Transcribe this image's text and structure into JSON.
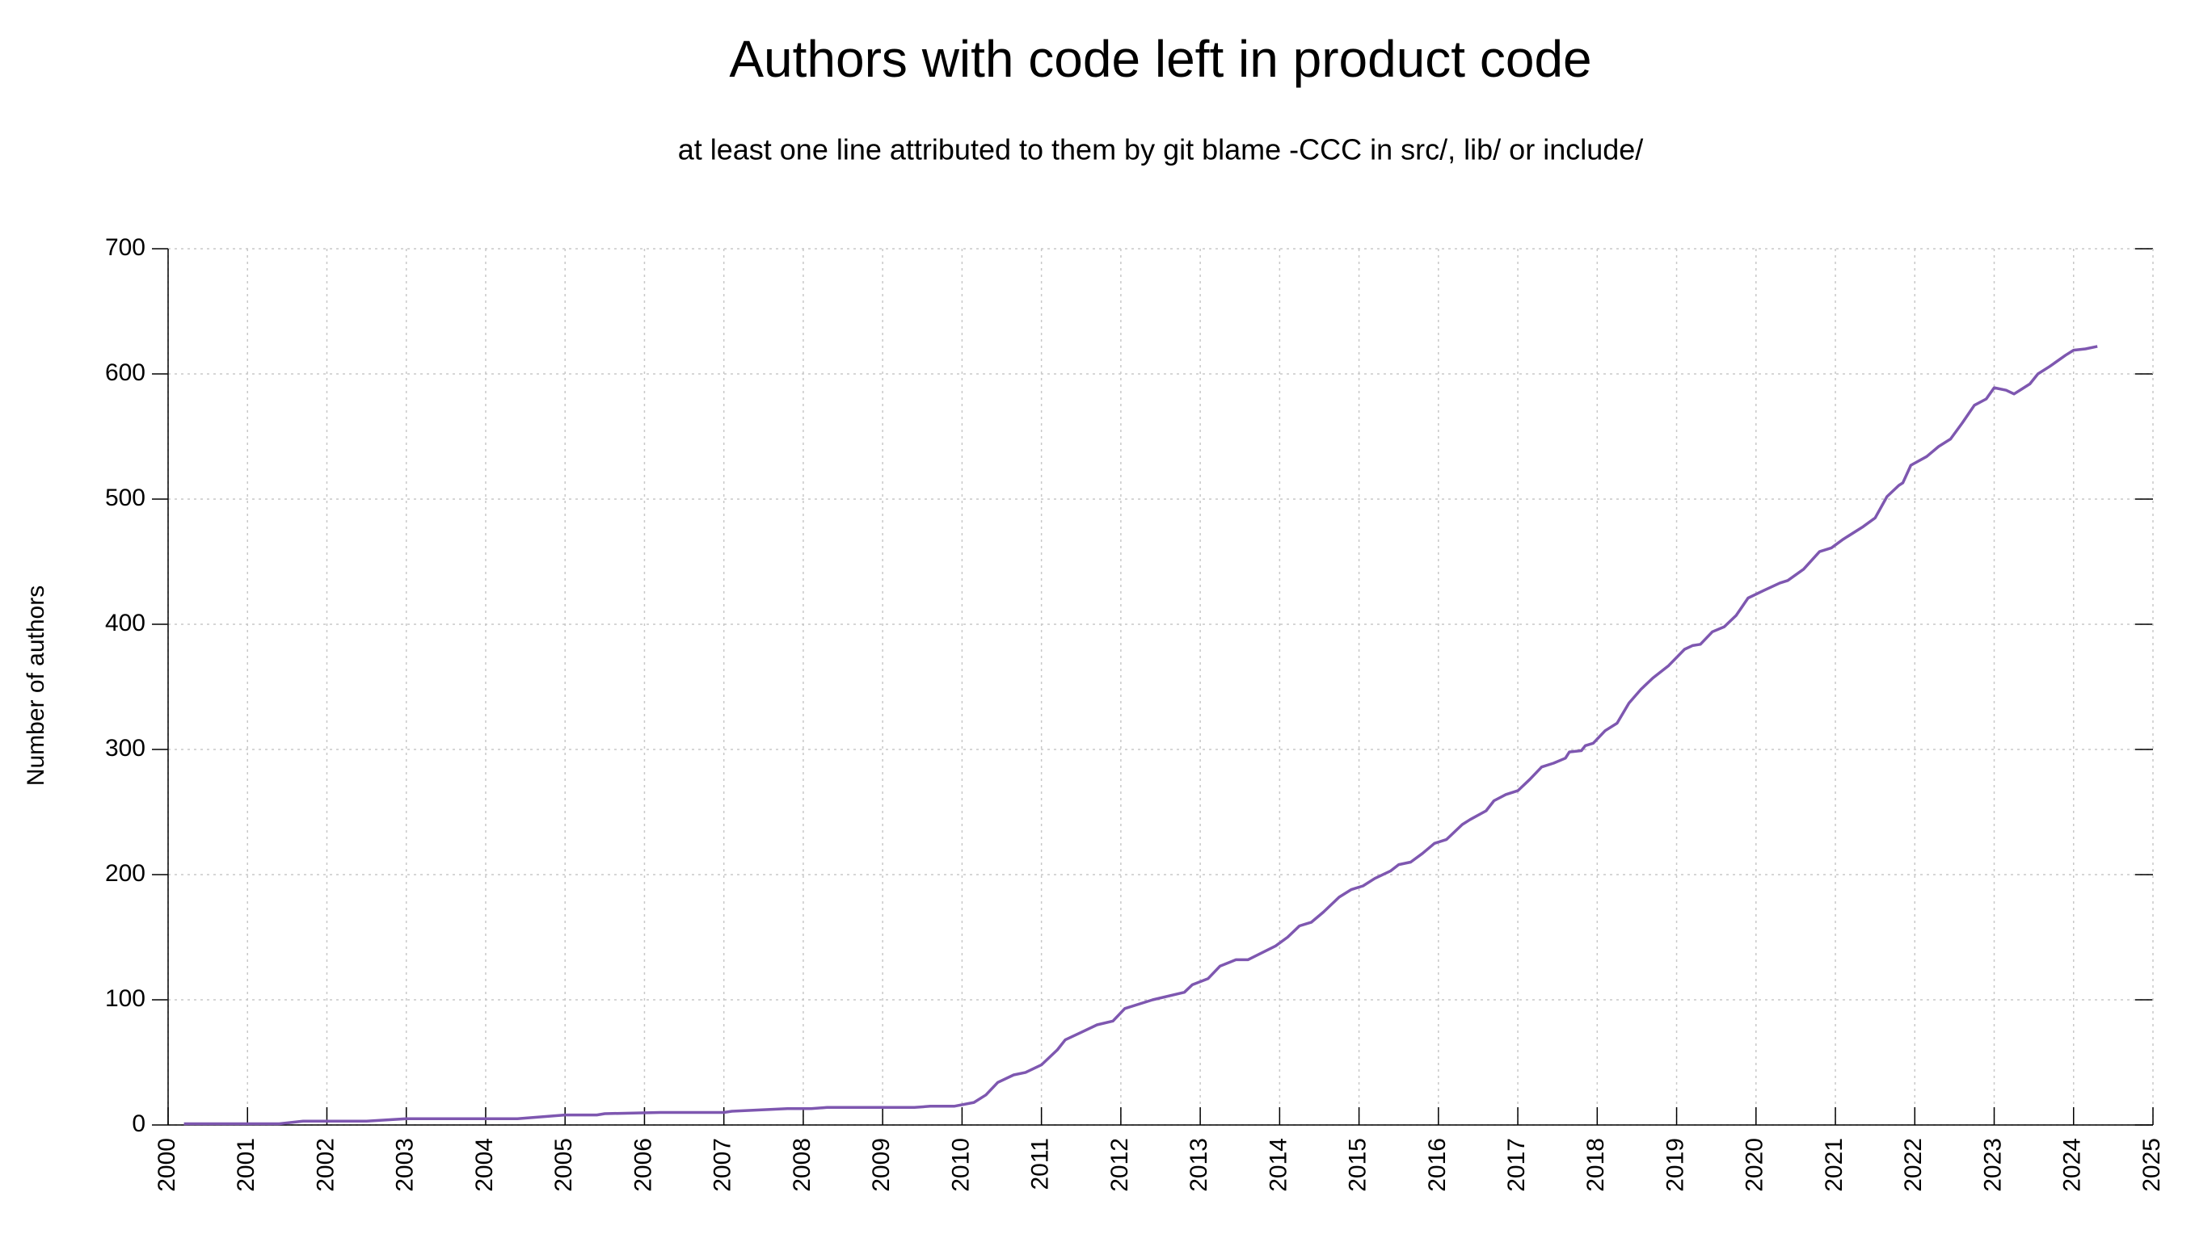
{
  "chart_data": {
    "type": "line",
    "title": "Authors with code left in product code",
    "subtitle": "at least one line attributed to them by git blame -CCC in src/, lib/ or include/",
    "y_label": "Number of authors",
    "xlim": [
      2000,
      2025
    ],
    "xticks": [
      2000,
      2001,
      2002,
      2003,
      2004,
      2005,
      2006,
      2007,
      2008,
      2009,
      2010,
      2011,
      2012,
      2013,
      2014,
      2015,
      2016,
      2017,
      2018,
      2019,
      2020,
      2021,
      2022,
      2023,
      2024,
      2025
    ],
    "ylim": [
      0,
      700
    ],
    "yticks": [
      0,
      100,
      200,
      300,
      400,
      500,
      600,
      700
    ],
    "grid": true,
    "series": [
      {
        "color": "#7e57b0",
        "x": [
          2000.2,
          2001.4,
          2001.7,
          2002.5,
          2003,
          2004.4,
          2005,
          2005.4,
          2005.5,
          2006.2,
          2007,
          2007.1,
          2007.8,
          2008.1,
          2008.3,
          2009.4,
          2009.6,
          2009.9,
          2010.15,
          2010.3,
          2010.45,
          2010.65,
          2010.8,
          2011,
          2011.2,
          2011.3,
          2011.5,
          2011.7,
          2011.9,
          2012.05,
          2012.4,
          2012.8,
          2012.9,
          2013.1,
          2013.25,
          2013.45,
          2013.6,
          2013.95,
          2014.1,
          2014.25,
          2014.4,
          2014.55,
          2014.75,
          2014.9,
          2015.05,
          2015.2,
          2015.4,
          2015.5,
          2015.65,
          2015.8,
          2015.95,
          2016.1,
          2016.3,
          2016.4,
          2016.6,
          2016.7,
          2016.85,
          2017,
          2017.15,
          2017.3,
          2017.45,
          2017.6,
          2017.65,
          2017.8,
          2017.85,
          2017.95,
          2018.1,
          2018.25,
          2018.4,
          2018.55,
          2018.7,
          2018.9,
          2019.1,
          2019.2,
          2019.3,
          2019.45,
          2019.6,
          2019.75,
          2019.9,
          2020.1,
          2020.3,
          2020.4,
          2020.6,
          2020.8,
          2020.95,
          2021.1,
          2021.35,
          2021.5,
          2021.65,
          2021.8,
          2021.85,
          2021.95,
          2022.15,
          2022.3,
          2022.45,
          2022.6,
          2022.75,
          2022.9,
          2023,
          2023.15,
          2023.25,
          2023.35,
          2023.45,
          2023.55,
          2023.7,
          2023.9,
          2024,
          2024.15,
          2024.3
        ],
        "values": [
          1,
          1,
          3,
          3,
          5,
          5,
          8,
          8,
          9,
          10,
          10,
          11,
          13,
          13,
          14,
          14,
          15,
          15,
          18,
          24,
          34,
          40,
          42,
          48,
          60,
          68,
          74,
          80,
          83,
          93,
          100,
          106,
          112,
          117,
          127,
          132,
          132,
          143,
          150,
          159,
          162,
          170,
          182,
          188,
          191,
          197,
          203,
          208,
          210,
          217,
          225,
          228,
          240,
          244,
          251,
          259,
          264,
          267,
          276,
          286,
          289,
          293,
          298,
          299,
          303,
          305,
          315,
          321,
          337,
          348,
          357,
          367,
          380,
          383,
          384,
          394,
          398,
          407,
          421,
          427,
          433,
          435,
          444,
          458,
          461,
          468,
          478,
          485,
          502,
          511,
          513,
          527,
          534,
          542,
          548,
          561,
          575,
          580,
          589,
          587,
          584,
          588,
          592,
          600,
          606,
          615,
          619,
          620,
          622
        ]
      }
    ]
  }
}
